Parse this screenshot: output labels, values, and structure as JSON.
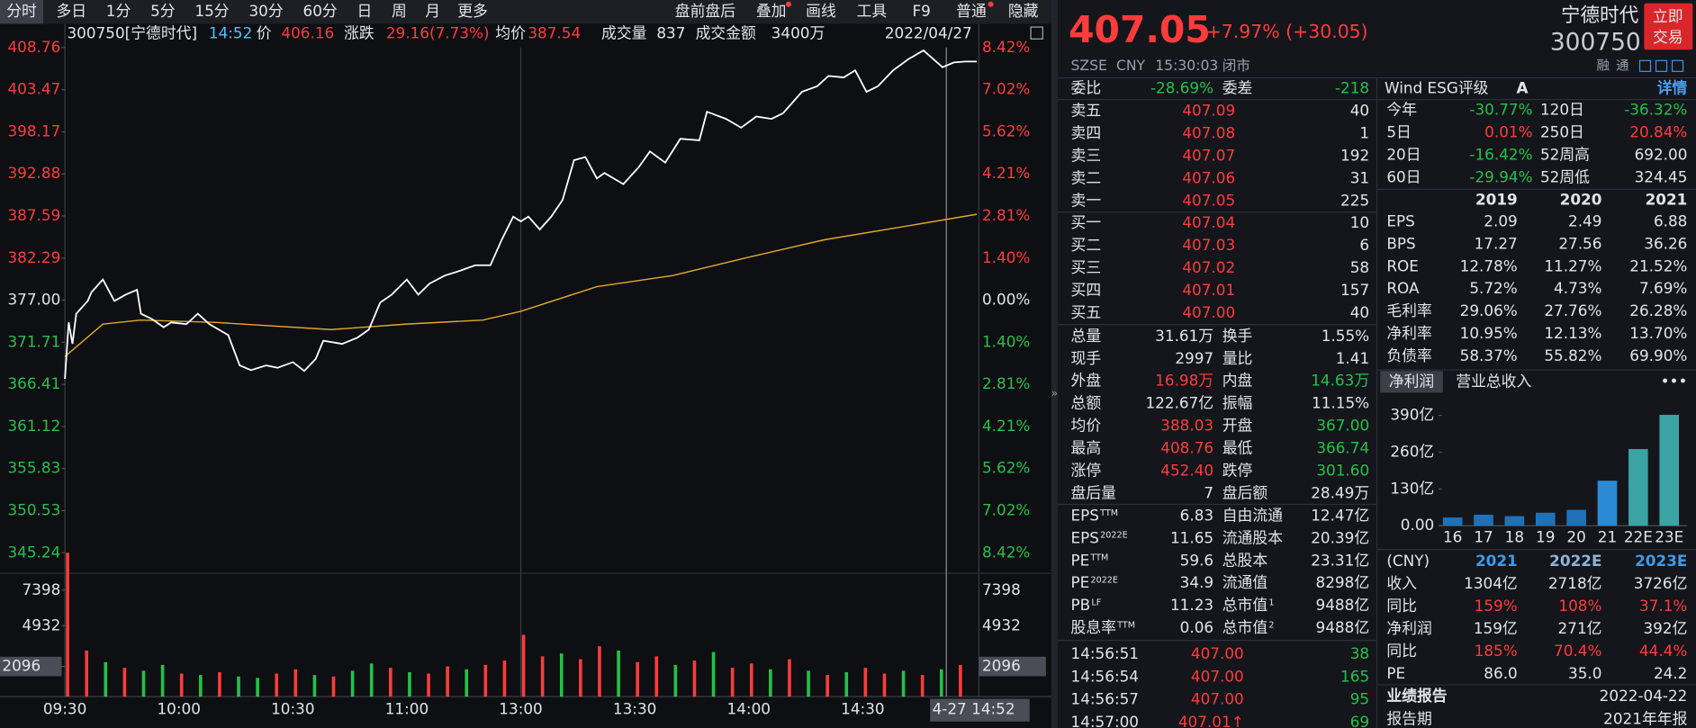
{
  "toolbar": {
    "left": [
      "分时",
      "多日",
      "1分",
      "5分",
      "15分",
      "30分",
      "60分",
      "日",
      "周",
      "月",
      "更多"
    ],
    "right": [
      "盘前盘后",
      "叠加",
      "画线",
      "工具",
      "F9",
      "普通",
      "隐藏"
    ]
  },
  "chart": {
    "info": {
      "symbol": "300750[宁德时代]",
      "time": "14:52",
      "price_label": "价",
      "price": "406.16",
      "change_label": "涨跌",
      "change": "29.16(7.73%)",
      "avg_label": "均价",
      "avg": "387.54",
      "vol_label": "成交量",
      "vol": "837",
      "amount_label": "成交金额",
      "amount": "3400万",
      "date": "2022/04/27"
    },
    "ylim": [
      345.24,
      408.76
    ],
    "yticks": [
      408.76,
      403.47,
      398.17,
      392.88,
      387.59,
      382.29,
      {
        "value": 377,
        "label": "377.00"
      },
      371.71,
      366.41,
      361.12,
      355.83,
      350.53,
      345.24
    ],
    "pct_labels": [
      "8.42%",
      "7.02%",
      "5.62%",
      "4.21%",
      "2.81%",
      "1.40%",
      "0.00%",
      "1.40%",
      "2.81%",
      "4.21%",
      "5.62%",
      "7.02%",
      "8.42%"
    ],
    "price_line": {
      "color": "#ffffff",
      "x": [
        "09:30",
        "09:31",
        "09:32",
        "09:33",
        "09:36",
        "09:37",
        "09:40",
        "09:43",
        "09:46",
        "09:49",
        "09:50",
        "09:53",
        "09:56",
        "09:58",
        "10:02",
        "10:05",
        "10:08",
        "10:13",
        "10:16",
        "10:19",
        "10:23",
        "10:26",
        "10:30",
        "10:33",
        "10:36",
        "10:38",
        "10:43",
        "10:47",
        "10:50",
        "10:53",
        "10:56",
        "11:00",
        "11:03",
        "11:06",
        "11:10",
        "11:14",
        "11:18",
        "11:22",
        "11:25",
        "11:28",
        "11:30",
        "13:02",
        "13:05",
        "13:08",
        "13:11",
        "13:14",
        "13:17",
        "13:20",
        "13:22",
        "13:27",
        "13:31",
        "13:34",
        "13:38",
        "13:42",
        "13:47",
        "13:49",
        "13:54",
        "13:58",
        "14:02",
        "14:06",
        "14:09",
        "14:14",
        "14:18",
        "14:21",
        "14:25",
        "14:28",
        "14:31",
        "14:34",
        "14:38",
        "14:42",
        "14:46",
        "14:51",
        "14:54",
        "14:57",
        "15:00"
      ],
      "values": [
        367.1,
        374.2,
        371.5,
        375.3,
        376.9,
        378.0,
        379.6,
        376.9,
        377.7,
        378.3,
        375.3,
        374.6,
        373.6,
        374.2,
        374.0,
        375.3,
        374.0,
        372.6,
        368.8,
        368.2,
        368.8,
        368.5,
        369.2,
        368.1,
        369.6,
        371.9,
        371.5,
        372.3,
        373.3,
        376.7,
        377.7,
        379.6,
        377.7,
        379.1,
        380.1,
        380.7,
        381.4,
        381.4,
        384.6,
        387.5,
        386.9,
        387.5,
        385.9,
        387.5,
        389.6,
        394.6,
        395.0,
        392.3,
        393.0,
        391.6,
        393.7,
        395.7,
        394.3,
        397.3,
        397.1,
        400.7,
        399.8,
        398.7,
        400.1,
        399.8,
        400.5,
        403.2,
        403.9,
        405.2,
        405.0,
        405.9,
        403.2,
        403.9,
        405.9,
        407.3,
        408.4,
        406.3,
        406.9,
        407.0,
        407.0
      ]
    },
    "avg_line": {
      "color": "#e0a82e",
      "x": [
        "09:30",
        "09:40",
        "09:50",
        "10:10",
        "10:40",
        "11:00",
        "11:20",
        "11:30",
        "13:20",
        "13:40",
        "14:00",
        "14:20",
        "14:40",
        "15:00"
      ],
      "values": [
        369.9,
        374.0,
        374.5,
        374.2,
        373.3,
        374.0,
        374.5,
        375.6,
        378.7,
        380.1,
        382.4,
        384.6,
        386.2,
        387.8
      ]
    },
    "volume": {
      "ylim": [
        0,
        10000
      ],
      "yticks": [
        7398,
        4932,
        2096
      ],
      "x": [
        "09:30",
        "09:35",
        "09:40",
        "09:45",
        "09:50",
        "09:55",
        "10:00",
        "10:05",
        "10:10",
        "10:15",
        "10:20",
        "10:25",
        "10:30",
        "10:35",
        "10:40",
        "10:45",
        "10:50",
        "10:55",
        "11:00",
        "11:05",
        "11:10",
        "11:15",
        "11:20",
        "11:25",
        "13:00",
        "13:05",
        "13:10",
        "13:15",
        "13:20",
        "13:25",
        "13:30",
        "13:35",
        "13:40",
        "13:45",
        "13:50",
        "13:55",
        "14:00",
        "14:05",
        "14:10",
        "14:15",
        "14:20",
        "14:25",
        "14:30",
        "14:35",
        "14:40",
        "14:45",
        "14:50",
        "14:55"
      ],
      "values": [
        10000,
        3200,
        2400,
        2000,
        1800,
        2200,
        1600,
        1500,
        1700,
        1400,
        1300,
        1600,
        1900,
        1500,
        1400,
        1800,
        2300,
        2000,
        1700,
        1600,
        2100,
        1900,
        2200,
        2500,
        4300,
        2800,
        3000,
        2600,
        3500,
        3200,
        2400,
        2800,
        2200,
        2500,
        3100,
        2000,
        2300,
        1900,
        2600,
        1800,
        1500,
        1700,
        2000,
        1600,
        1800,
        1500,
        1900,
        2200
      ],
      "colors": [
        "#ff3b3b",
        "#ff3b3b",
        "#24c14a",
        "#ff3b3b",
        "#24c14a",
        "#24c14a",
        "#ff3b3b",
        "#24c14a",
        "#ff3b3b",
        "#24c14a",
        "#24c14a",
        "#ff3b3b",
        "#ff3b3b",
        "#24c14a",
        "#ff3b3b",
        "#24c14a",
        "#24c14a",
        "#ff3b3b",
        "#24c14a",
        "#ff3b3b",
        "#ff3b3b",
        "#24c14a",
        "#ff3b3b",
        "#ff3b3b",
        "#ff3b3b",
        "#ff3b3b",
        "#24c14a",
        "#ff3b3b",
        "#ff3b3b",
        "#24c14a",
        "#ff3b3b",
        "#ff3b3b",
        "#24c14a",
        "#ff3b3b",
        "#24c14a",
        "#ff3b3b",
        "#ff3b3b",
        "#24c14a",
        "#ff3b3b",
        "#24c14a",
        "#ff3b3b",
        "#24c14a",
        "#ff3b3b",
        "#ff3b3b",
        "#24c14a",
        "#ff3b3b",
        "#24c14a",
        "#ff3b3b"
      ]
    },
    "xticks": [
      "09:30",
      "10:00",
      "10:30",
      "11:00",
      "13:00",
      "13:30",
      "14:00",
      "14:30"
    ],
    "cursor_label": "4-27 14:52"
  },
  "quote": {
    "price": "407.05",
    "change": "+7.97% (+30.05)",
    "name": "宁德时代",
    "code": "300750",
    "trade_button": [
      "立即",
      "交易"
    ],
    "exchange": "SZSE",
    "currency": "CNY",
    "time": "15:30:03",
    "status": "闭市",
    "tags": [
      "融",
      "通"
    ]
  },
  "order_book": {
    "ratio_label": "委比",
    "ratio": "-28.69%",
    "diff_label": "委差",
    "diff": "-218",
    "asks": [
      {
        "label": "卖五",
        "price": "407.09",
        "qty": "40"
      },
      {
        "label": "卖四",
        "price": "407.08",
        "qty": "1"
      },
      {
        "label": "卖三",
        "price": "407.07",
        "qty": "192"
      },
      {
        "label": "卖二",
        "price": "407.06",
        "qty": "31"
      },
      {
        "label": "卖一",
        "price": "407.05",
        "qty": "225"
      }
    ],
    "bids": [
      {
        "label": "买一",
        "price": "407.04",
        "qty": "10"
      },
      {
        "label": "买二",
        "price": "407.03",
        "qty": "6"
      },
      {
        "label": "买三",
        "price": "407.02",
        "qty": "58"
      },
      {
        "label": "买四",
        "price": "407.01",
        "qty": "157"
      },
      {
        "label": "买五",
        "price": "407.00",
        "qty": "40"
      }
    ]
  },
  "stats": [
    {
      "l1": "总量",
      "v1": "31.61万",
      "l2": "换手",
      "v2": "1.55%"
    },
    {
      "l1": "现手",
      "v1": "2997",
      "l2": "量比",
      "v2": "1.41"
    },
    {
      "l1": "外盘",
      "v1": "16.98万",
      "c1": "#ff3b3b",
      "l2": "内盘",
      "v2": "14.63万",
      "c2": "#24c14a"
    },
    {
      "l1": "总额",
      "v1": "122.67亿",
      "l2": "振幅",
      "v2": "11.15%"
    },
    {
      "l1": "均价",
      "v1": "388.03",
      "c1": "#ff3b3b",
      "l2": "开盘",
      "v2": "367.00",
      "c2": "#24c14a"
    },
    {
      "l1": "最高",
      "v1": "408.76",
      "c1": "#ff3b3b",
      "l2": "最低",
      "v2": "366.74",
      "c2": "#24c14a"
    },
    {
      "l1": "涨停",
      "v1": "452.40",
      "c1": "#ff3b3b",
      "l2": "跌停",
      "v2": "301.60",
      "c2": "#24c14a"
    },
    {
      "l1": "盘后量",
      "v1": "7",
      "l2": "盘后额",
      "v2": "28.49万"
    },
    {
      "l1": "EPS",
      "s1": "TTM",
      "v1": "6.83",
      "l2": "自由流通",
      "v2": "12.47亿"
    },
    {
      "l1": "EPS",
      "s1": "2022E",
      "v1": "11.65",
      "l2": "流通股本",
      "v2": "20.39亿"
    },
    {
      "l1": "PE",
      "s1": "TTM",
      "v1": "59.6",
      "l2": "总股本",
      "v2": "23.31亿"
    },
    {
      "l1": "PE",
      "s1": "2022E",
      "v1": "34.9",
      "l2": "流通值",
      "v2": "8298亿"
    },
    {
      "l1": "PB",
      "s1": "LF",
      "v1": "11.23",
      "l2": "总市值",
      "s2": "1",
      "v2": "9488亿"
    },
    {
      "l1": "股息率",
      "s1": "TTM",
      "v1": "0.06",
      "l2": "总市值",
      "s2": "2",
      "v2": "9488亿"
    }
  ],
  "trades": [
    {
      "time": "14:56:51",
      "price": "407.00",
      "vol": "38"
    },
    {
      "time": "14:56:54",
      "price": "407.00",
      "vol": "165"
    },
    {
      "time": "14:56:57",
      "price": "407.00",
      "vol": "95"
    },
    {
      "time": "14:57:00",
      "price": "407.01↑",
      "vol": "69"
    }
  ],
  "esg": {
    "label": "Wind ESG评级",
    "rating": "A",
    "link": "详情"
  },
  "perf": [
    {
      "l1": "今年",
      "v1": "-30.77%",
      "c1": "#24c14a",
      "l2": "120日",
      "v2": "-36.32%",
      "c2": "#24c14a"
    },
    {
      "l1": "5日",
      "v1": "0.01%",
      "c1": "#ff3b3b",
      "l2": "250日",
      "v2": "20.84%",
      "c2": "#ff3b3b"
    },
    {
      "l1": "20日",
      "v1": "-16.42%",
      "c1": "#24c14a",
      "l2": "52周高",
      "v2": "692.00"
    },
    {
      "l1": "60日",
      "v1": "-29.94%",
      "c1": "#24c14a",
      "l2": "52周低",
      "v2": "324.45"
    }
  ],
  "fin": {
    "years": [
      "2019",
      "2020",
      "2021"
    ],
    "rows": [
      {
        "label": "EPS",
        "values": [
          "2.09",
          "2.49",
          "6.88"
        ]
      },
      {
        "label": "BPS",
        "values": [
          "17.27",
          "27.56",
          "36.26"
        ]
      },
      {
        "label": "ROE",
        "values": [
          "12.78%",
          "11.27%",
          "21.52%"
        ]
      },
      {
        "label": "ROA",
        "values": [
          "5.72%",
          "4.73%",
          "7.69%"
        ]
      },
      {
        "label": "毛利率",
        "values": [
          "29.06%",
          "27.76%",
          "26.28%"
        ]
      },
      {
        "label": "净利率",
        "values": [
          "10.95%",
          "12.13%",
          "13.70%"
        ]
      },
      {
        "label": "负债率",
        "values": [
          "58.37%",
          "55.82%",
          "69.90%"
        ]
      }
    ]
  },
  "profit_chart": {
    "tabs": [
      "净利润",
      "营业总收入"
    ],
    "more": "•••",
    "ylim": [
      0,
      390
    ],
    "yticks": [
      {
        "value": 390,
        "label": "390亿"
      },
      {
        "value": 260,
        "label": "260亿"
      },
      {
        "value": 130,
        "label": "130亿"
      },
      {
        "value": 0,
        "label": "0.00"
      }
    ],
    "categories": [
      "16",
      "17",
      "18",
      "19",
      "20",
      "21",
      "22E",
      "23E"
    ],
    "values": [
      29,
      39,
      34,
      46,
      56,
      159,
      271,
      392
    ],
    "colors": [
      "#1f72b8",
      "#1f72b8",
      "#1f72b8",
      "#1f72b8",
      "#1f72b8",
      "#2a8ad6",
      "#3aa3a3",
      "#3aa3a3"
    ]
  },
  "forecast": {
    "header": "(CNY)",
    "years": [
      "2021",
      "2022E",
      "2023E"
    ],
    "rows": [
      {
        "label": "收入",
        "values": [
          "1304亿",
          "2718亿",
          "3726亿"
        ]
      },
      {
        "label": "同比",
        "values": [
          "159%",
          "108%",
          "37.1%"
        ],
        "color": "#ff3b3b"
      },
      {
        "label": "净利润",
        "values": [
          "159亿",
          "271亿",
          "392亿"
        ]
      },
      {
        "label": "同比",
        "values": [
          "185%",
          "70.4%",
          "44.4%"
        ],
        "color": "#ff3b3b"
      },
      {
        "label": "PE",
        "values": [
          "86.0",
          "35.0",
          "24.2"
        ]
      }
    ]
  },
  "report": [
    {
      "label": "业绩报告",
      "value": "2022-04-22"
    },
    {
      "label": "报告期",
      "value": "2021年年报"
    }
  ]
}
